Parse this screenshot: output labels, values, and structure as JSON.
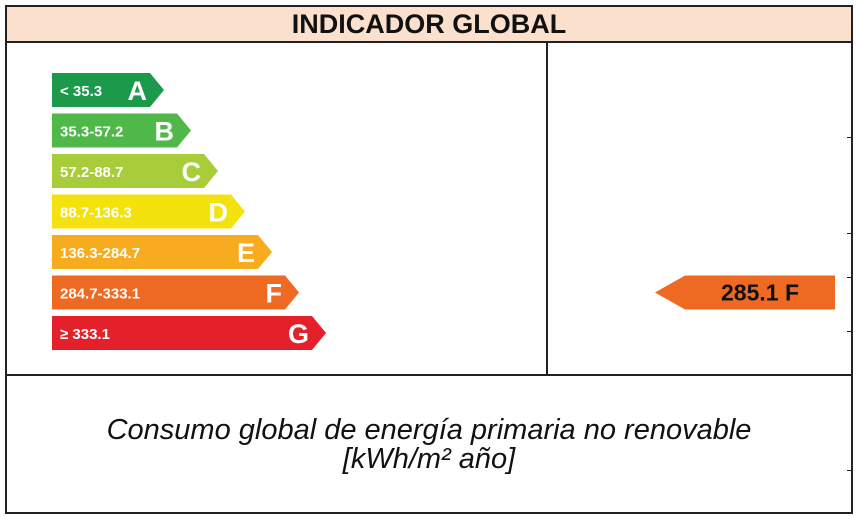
{
  "title": "INDICADOR GLOBAL",
  "caption": {
    "line1": "Consumo global de energía primaria no renovable",
    "line2": "[kWh/m² año]"
  },
  "chart_data": {
    "type": "energy-rating",
    "classes": [
      {
        "range": "< 35.3",
        "letter": "A",
        "color": "#1a9a4a"
      },
      {
        "range": "35.3-57.2",
        "letter": "B",
        "color": "#4fb848"
      },
      {
        "range": "57.2-88.7",
        "letter": "C",
        "color": "#a9cc3a"
      },
      {
        "range": "88.7-136.3",
        "letter": "D",
        "color": "#f4e20f"
      },
      {
        "range": "136.3-284.7",
        "letter": "E",
        "color": "#f6ac1e"
      },
      {
        "range": "284.7-333.1",
        "letter": "F",
        "color": "#ee6a23"
      },
      {
        "range": "≥ 333.1",
        "letter": "G",
        "color": "#e4202a"
      }
    ],
    "indicator": {
      "value": 285.1,
      "letter": "F",
      "label": "285.1 F",
      "color": "#ee6a23"
    }
  }
}
